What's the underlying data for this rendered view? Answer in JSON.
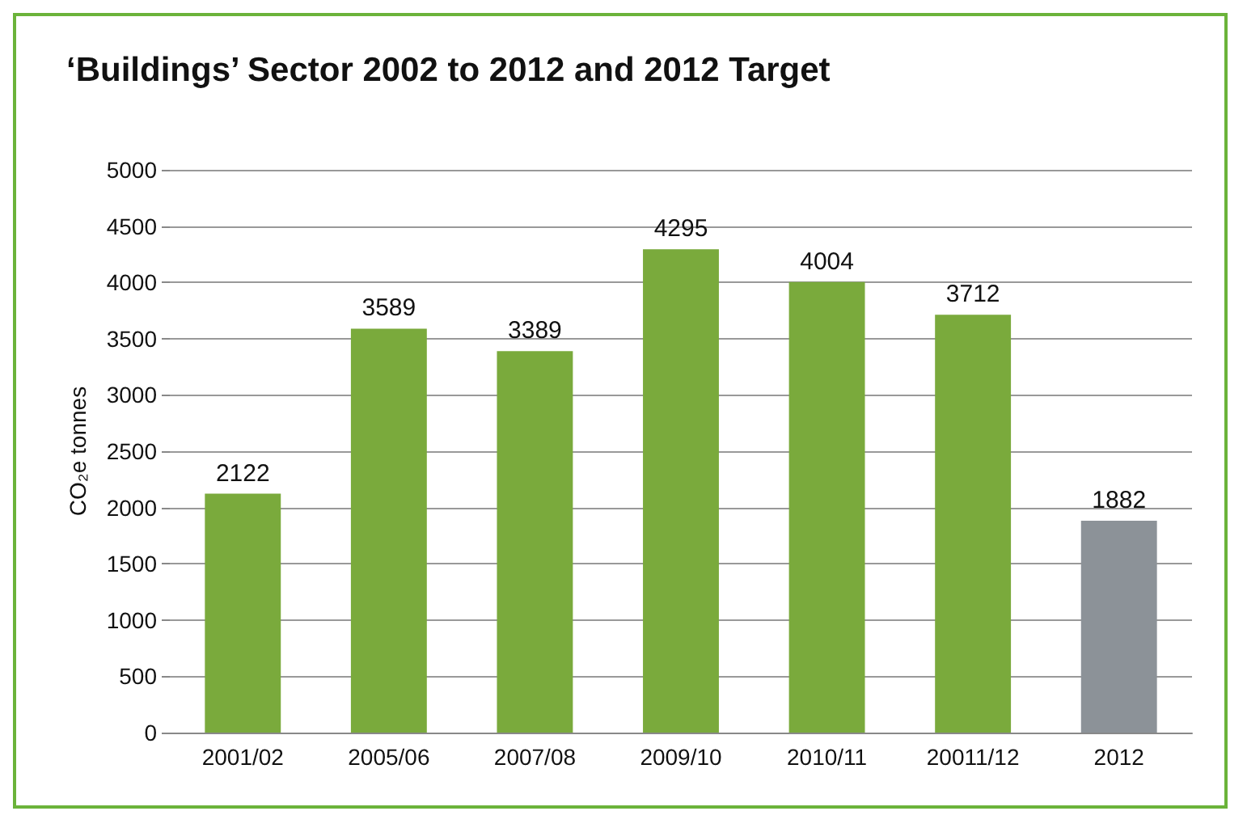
{
  "chart_data": {
    "type": "bar",
    "title": "‘Buildings’ Sector 2002 to 2012 and 2012 Target",
    "ylabel": "CO₂e tonnes",
    "categories": [
      "2001/02",
      "2005/06",
      "2007/08",
      "2009/10",
      "2010/11",
      "20011/12",
      "2012"
    ],
    "values": [
      2122,
      3589,
      3389,
      4295,
      4004,
      3712,
      1882
    ],
    "colors": [
      "#7aaa3c",
      "#7aaa3c",
      "#7aaa3c",
      "#7aaa3c",
      "#7aaa3c",
      "#7aaa3c",
      "#8c9298"
    ],
    "ylim": [
      0,
      5000
    ],
    "yticks": [
      0,
      500,
      1000,
      1500,
      2000,
      2500,
      3000,
      3500,
      4000,
      4500,
      5000
    ],
    "grid": "y",
    "data_labels": true
  }
}
